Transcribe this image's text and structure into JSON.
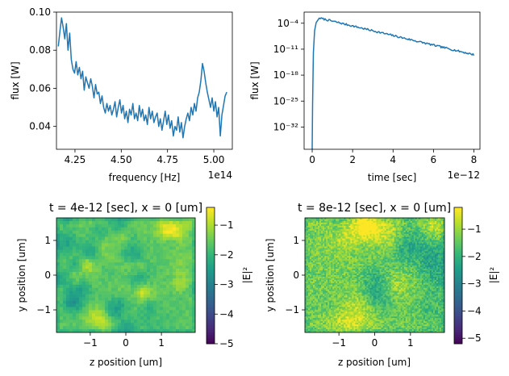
{
  "chart_data": [
    {
      "type": "line",
      "xlabel": "frequency [Hz]",
      "ylabel": "flux [W]",
      "xscale_label": "1e14",
      "xlim": [
        4.15,
        5.1
      ],
      "ylim": [
        0.028,
        0.1
      ],
      "xticks": [
        4.25,
        4.5,
        4.75,
        5.0
      ],
      "xtick_labels": [
        "4.25",
        "4.50",
        "4.75",
        "5.00"
      ],
      "yticks": [
        0.04,
        0.06,
        0.08,
        0.1
      ],
      "ytick_labels": [
        "0.04",
        "0.06",
        "0.08",
        "0.10"
      ],
      "color": "#1f77b4",
      "x_start": 4.16,
      "x_end": 5.07,
      "values": [
        0.082,
        0.09,
        0.097,
        0.092,
        0.086,
        0.094,
        0.08,
        0.089,
        0.075,
        0.07,
        0.068,
        0.074,
        0.067,
        0.071,
        0.065,
        0.069,
        0.059,
        0.066,
        0.063,
        0.06,
        0.065,
        0.061,
        0.055,
        0.062,
        0.057,
        0.058,
        0.052,
        0.056,
        0.05,
        0.047,
        0.052,
        0.048,
        0.051,
        0.046,
        0.049,
        0.053,
        0.045,
        0.05,
        0.054,
        0.047,
        0.051,
        0.044,
        0.048,
        0.042,
        0.049,
        0.046,
        0.052,
        0.044,
        0.047,
        0.043,
        0.051,
        0.045,
        0.049,
        0.043,
        0.046,
        0.041,
        0.05,
        0.044,
        0.048,
        0.042,
        0.045,
        0.047,
        0.04,
        0.044,
        0.038,
        0.043,
        0.048,
        0.041,
        0.046,
        0.039,
        0.043,
        0.035,
        0.04,
        0.038,
        0.045,
        0.037,
        0.042,
        0.034,
        0.04,
        0.044,
        0.047,
        0.043,
        0.05,
        0.046,
        0.052,
        0.048,
        0.055,
        0.058,
        0.064,
        0.073,
        0.069,
        0.063,
        0.058,
        0.054,
        0.05,
        0.055,
        0.048,
        0.053,
        0.045,
        0.05,
        0.035,
        0.046,
        0.051,
        0.056,
        0.058
      ]
    },
    {
      "type": "line",
      "xlabel": "time [sec]",
      "ylabel": "flux [W]",
      "xscale_label": "1e−12",
      "yscale": "log",
      "xlim": [
        -0.4,
        8.3
      ],
      "ylim_log10": [
        -38,
        -1
      ],
      "xticks": [
        0,
        2,
        4,
        6,
        8
      ],
      "xtick_labels": [
        "0",
        "2",
        "4",
        "6",
        "8"
      ],
      "ytick_exponents": [
        -4,
        -11,
        -18,
        -25,
        -32
      ],
      "ytick_labels": [
        "10⁻⁴",
        "10⁻¹¹",
        "10⁻¹⁸",
        "10⁻²⁵",
        "10⁻³²"
      ],
      "color": "#1f77b4",
      "peak_time": 0.35,
      "peak_log10": -2.6,
      "end_time": 8.0,
      "end_log10": -12.5
    },
    {
      "type": "heatmap",
      "title": "t = 4e-12 [sec], x = 0 [um]",
      "xlabel": "z position [um]",
      "ylabel": "y position [um]",
      "xticks": [
        -1,
        0,
        1
      ],
      "xtick_labels": [
        "−1",
        "0",
        "1"
      ],
      "yticks": [
        -1,
        0,
        1
      ],
      "ytick_labels": [
        "−1",
        "0",
        "1"
      ],
      "xlim": [
        -1.95,
        1.95
      ],
      "ylim": [
        -1.65,
        1.65
      ],
      "colorbar_label": "|E|²",
      "colorbar_range": [
        -5,
        -0.4
      ],
      "colorbar_ticks": [
        -1,
        -2,
        -3,
        -4,
        -5
      ],
      "colorbar_tick_labels": [
        "−1",
        "−2",
        "−3",
        "−4",
        "−5"
      ],
      "colormap": "viridis",
      "texture": "smooth blobs",
      "typical_value": -1.6
    },
    {
      "type": "heatmap",
      "title": "t = 8e-12 [sec], x = 0 [um]",
      "xlabel": "z position [um]",
      "ylabel": "y position [um]",
      "xticks": [
        -1,
        0,
        1
      ],
      "xtick_labels": [
        "−1",
        "0",
        "1"
      ],
      "yticks": [
        -1,
        0,
        1
      ],
      "ytick_labels": [
        "−1",
        "0",
        "1"
      ],
      "xlim": [
        -1.95,
        1.95
      ],
      "ylim": [
        -1.65,
        1.65
      ],
      "colorbar_label": "|E|²",
      "colorbar_range": [
        -5.2,
        -0.2
      ],
      "colorbar_ticks": [
        -1,
        -2,
        -3,
        -4,
        -5
      ],
      "colorbar_tick_labels": [
        "−1",
        "−2",
        "−3",
        "−4",
        "−5"
      ],
      "colormap": "viridis",
      "texture": "fine speckle",
      "typical_value": -1.3
    }
  ]
}
